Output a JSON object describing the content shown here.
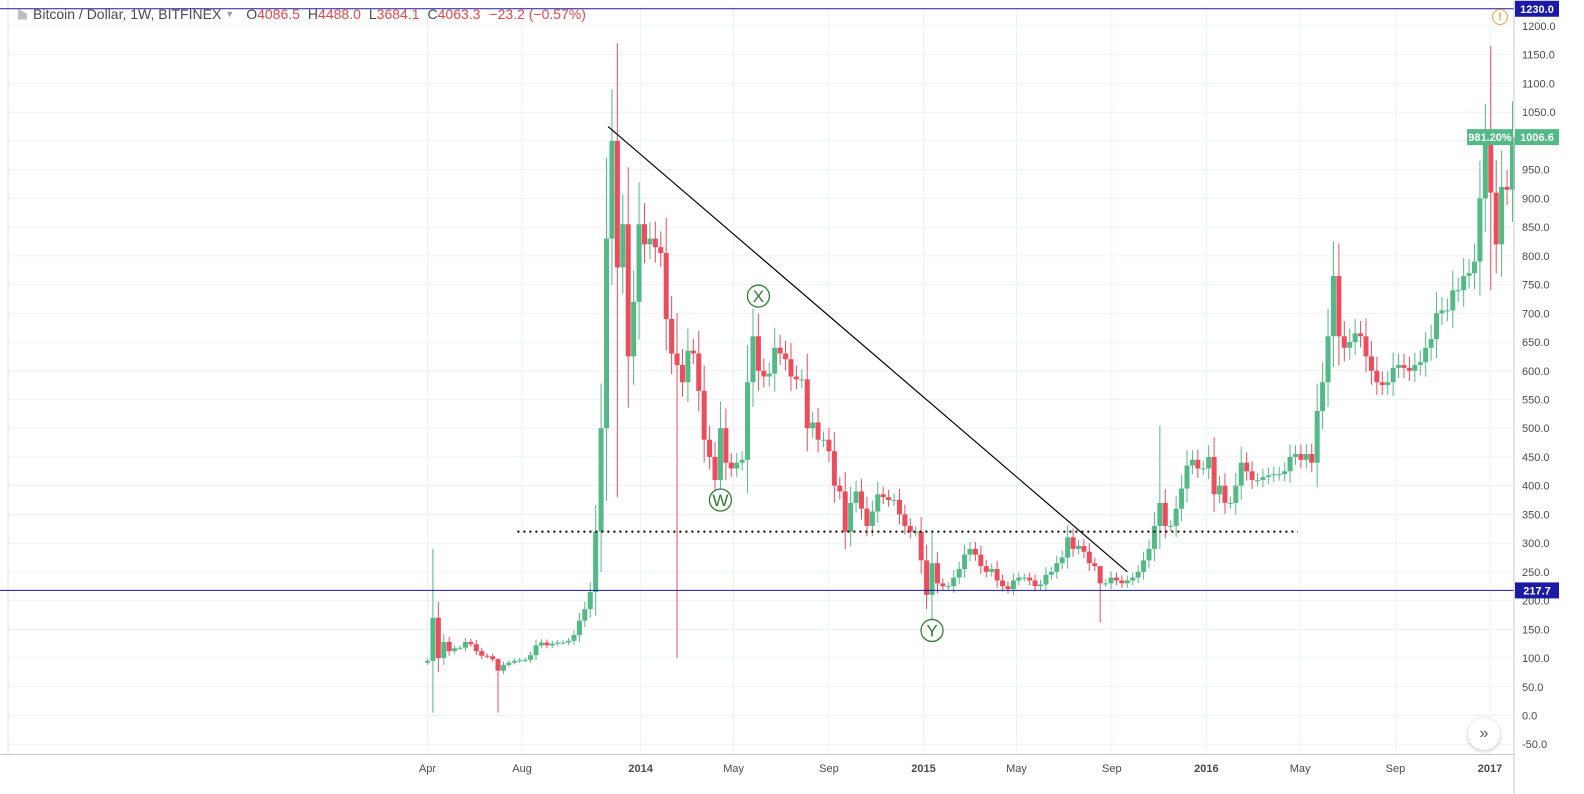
{
  "header": {
    "symbol": "Bitcoin / Dollar, 1W, BITFINEX",
    "o_label": "O",
    "o_value": "4086.5",
    "h_label": "H",
    "h_value": "4488.0",
    "l_label": "L",
    "l_value": "3684.1",
    "c_label": "C",
    "c_value": "4063.3",
    "change": "−23.2 (−0.57%)"
  },
  "colors": {
    "up": "#53b987",
    "down": "#eb4d5c",
    "hline": "#1a1aa6",
    "trendline": "#000000",
    "wave_label": "#2f7d2f",
    "price_tag": "#53b987"
  },
  "icons": {
    "alert": "alert-circle-icon",
    "scroll": "double-chevron-right-icon"
  },
  "price_tags": {
    "top_line": "1230.0",
    "support_line": "217.7",
    "percent": "981.20%",
    "last": "1006.6"
  },
  "wave_labels": [
    "W",
    "X",
    "Y"
  ],
  "chart_data": {
    "type": "candlestick",
    "title": "Bitcoin / Dollar, 1W, BITFINEX",
    "ylim": [
      -70,
      1230
    ],
    "y_ticks": [
      -50,
      0,
      50,
      100,
      150,
      200,
      250,
      300,
      350,
      400,
      450,
      500,
      550,
      600,
      650,
      700,
      750,
      800,
      850,
      900,
      950,
      1000,
      1050,
      1100,
      1150,
      1200
    ],
    "x_ticks": [
      "Apr",
      "Aug",
      "2014",
      "May",
      "Sep",
      "2015",
      "May",
      "Sep",
      "2016",
      "May",
      "Sep",
      "2017"
    ],
    "grid": true,
    "horizontal_lines": [
      1230.0,
      217.7
    ],
    "dotted_level": 320,
    "trendline": [
      {
        "x": "2013-11-25",
        "y": 1025
      },
      {
        "x": "2015-09-21",
        "y": 250
      }
    ],
    "wave_annotations": [
      {
        "label": "W",
        "x": "2014-04-14",
        "y": 375
      },
      {
        "label": "X",
        "x": "2014-06-02",
        "y": 730
      },
      {
        "label": "Y",
        "x": "2015-01-12",
        "y": 148
      }
    ],
    "weekly_close": [
      {
        "date": "2013-04-01",
        "close": 95
      },
      {
        "date": "2013-04-08",
        "close": 170
      },
      {
        "date": "2013-04-15",
        "close": 100
      },
      {
        "date": "2013-04-22",
        "close": 128
      },
      {
        "date": "2013-04-29",
        "close": 112
      },
      {
        "date": "2013-05-06",
        "close": 117
      },
      {
        "date": "2013-05-13",
        "close": 118
      },
      {
        "date": "2013-05-20",
        "close": 128
      },
      {
        "date": "2013-05-27",
        "close": 124
      },
      {
        "date": "2013-06-03",
        "close": 112
      },
      {
        "date": "2013-06-10",
        "close": 104
      },
      {
        "date": "2013-06-17",
        "close": 103
      },
      {
        "date": "2013-06-24",
        "close": 98
      },
      {
        "date": "2013-07-01",
        "close": 78
      },
      {
        "date": "2013-07-08",
        "close": 88
      },
      {
        "date": "2013-07-15",
        "close": 92
      },
      {
        "date": "2013-07-22",
        "close": 95
      },
      {
        "date": "2013-07-29",
        "close": 96
      },
      {
        "date": "2013-08-05",
        "close": 97
      },
      {
        "date": "2013-08-12",
        "close": 105
      },
      {
        "date": "2013-08-19",
        "close": 122
      },
      {
        "date": "2013-08-26",
        "close": 127
      },
      {
        "date": "2013-09-02",
        "close": 122
      },
      {
        "date": "2013-09-09",
        "close": 125
      },
      {
        "date": "2013-09-16",
        "close": 127
      },
      {
        "date": "2013-09-23",
        "close": 127
      },
      {
        "date": "2013-09-30",
        "close": 130
      },
      {
        "date": "2013-10-07",
        "close": 140
      },
      {
        "date": "2013-10-14",
        "close": 165
      },
      {
        "date": "2013-10-21",
        "close": 185
      },
      {
        "date": "2013-10-28",
        "close": 215
      },
      {
        "date": "2013-11-04",
        "close": 320
      },
      {
        "date": "2013-11-11",
        "close": 500
      },
      {
        "date": "2013-11-18",
        "close": 830
      },
      {
        "date": "2013-11-25",
        "close": 1000
      },
      {
        "date": "2013-12-02",
        "close": 780
      },
      {
        "date": "2013-12-09",
        "close": 855
      },
      {
        "date": "2013-12-16",
        "close": 625
      },
      {
        "date": "2013-12-23",
        "close": 720
      },
      {
        "date": "2013-12-30",
        "close": 855
      },
      {
        "date": "2014-01-06",
        "close": 820
      },
      {
        "date": "2014-01-13",
        "close": 830
      },
      {
        "date": "2014-01-20",
        "close": 815
      },
      {
        "date": "2014-01-27",
        "close": 805
      },
      {
        "date": "2014-02-03",
        "close": 690
      },
      {
        "date": "2014-02-10",
        "close": 630
      },
      {
        "date": "2014-02-17",
        "close": 610
      },
      {
        "date": "2014-02-24",
        "close": 580
      },
      {
        "date": "2014-03-03",
        "close": 635
      },
      {
        "date": "2014-03-10",
        "close": 630
      },
      {
        "date": "2014-03-17",
        "close": 565
      },
      {
        "date": "2014-03-24",
        "close": 480
      },
      {
        "date": "2014-03-31",
        "close": 450
      },
      {
        "date": "2014-04-07",
        "close": 410
      },
      {
        "date": "2014-04-14",
        "close": 500
      },
      {
        "date": "2014-04-21",
        "close": 440
      },
      {
        "date": "2014-04-28",
        "close": 430
      },
      {
        "date": "2014-05-05",
        "close": 440
      },
      {
        "date": "2014-05-12",
        "close": 445
      },
      {
        "date": "2014-05-19",
        "close": 580
      },
      {
        "date": "2014-05-26",
        "close": 660
      },
      {
        "date": "2014-06-02",
        "close": 600
      },
      {
        "date": "2014-06-09",
        "close": 590
      },
      {
        "date": "2014-06-16",
        "close": 595
      },
      {
        "date": "2014-06-23",
        "close": 640
      },
      {
        "date": "2014-06-30",
        "close": 630
      },
      {
        "date": "2014-07-07",
        "close": 620
      },
      {
        "date": "2014-07-14",
        "close": 590
      },
      {
        "date": "2014-07-21",
        "close": 585
      },
      {
        "date": "2014-07-28",
        "close": 585
      },
      {
        "date": "2014-08-04",
        "close": 500
      },
      {
        "date": "2014-08-11",
        "close": 510
      },
      {
        "date": "2014-08-18",
        "close": 480
      },
      {
        "date": "2014-08-25",
        "close": 480
      },
      {
        "date": "2014-09-01",
        "close": 460
      },
      {
        "date": "2014-09-08",
        "close": 400
      },
      {
        "date": "2014-09-15",
        "close": 390
      },
      {
        "date": "2014-09-22",
        "close": 320
      },
      {
        "date": "2014-09-29",
        "close": 370
      },
      {
        "date": "2014-10-06",
        "close": 390
      },
      {
        "date": "2014-10-13",
        "close": 360
      },
      {
        "date": "2014-10-20",
        "close": 330
      },
      {
        "date": "2014-10-27",
        "close": 355
      },
      {
        "date": "2014-11-03",
        "close": 385
      },
      {
        "date": "2014-11-10",
        "close": 380
      },
      {
        "date": "2014-11-17",
        "close": 375
      },
      {
        "date": "2014-11-24",
        "close": 375
      },
      {
        "date": "2014-12-01",
        "close": 350
      },
      {
        "date": "2014-12-08",
        "close": 330
      },
      {
        "date": "2014-12-15",
        "close": 320
      },
      {
        "date": "2014-12-22",
        "close": 320
      },
      {
        "date": "2014-12-29",
        "close": 270
      },
      {
        "date": "2015-01-05",
        "close": 210
      },
      {
        "date": "2015-01-12",
        "close": 265
      },
      {
        "date": "2015-01-19",
        "close": 230
      },
      {
        "date": "2015-01-26",
        "close": 225
      },
      {
        "date": "2015-02-02",
        "close": 225
      },
      {
        "date": "2015-02-09",
        "close": 240
      },
      {
        "date": "2015-02-16",
        "close": 255
      },
      {
        "date": "2015-02-23",
        "close": 280
      },
      {
        "date": "2015-03-02",
        "close": 290
      },
      {
        "date": "2015-03-09",
        "close": 280
      },
      {
        "date": "2015-03-16",
        "close": 260
      },
      {
        "date": "2015-03-23",
        "close": 250
      },
      {
        "date": "2015-03-30",
        "close": 255
      },
      {
        "date": "2015-04-06",
        "close": 235
      },
      {
        "date": "2015-04-13",
        "close": 225
      },
      {
        "date": "2015-04-20",
        "close": 220
      },
      {
        "date": "2015-04-27",
        "close": 235
      },
      {
        "date": "2015-05-04",
        "close": 240
      },
      {
        "date": "2015-05-11",
        "close": 240
      },
      {
        "date": "2015-05-18",
        "close": 235
      },
      {
        "date": "2015-05-25",
        "close": 225
      },
      {
        "date": "2015-06-01",
        "close": 228
      },
      {
        "date": "2015-06-08",
        "close": 245
      },
      {
        "date": "2015-06-15",
        "close": 250
      },
      {
        "date": "2015-06-22",
        "close": 265
      },
      {
        "date": "2015-06-29",
        "close": 275
      },
      {
        "date": "2015-07-06",
        "close": 310
      },
      {
        "date": "2015-07-13",
        "close": 290
      },
      {
        "date": "2015-07-20",
        "close": 295
      },
      {
        "date": "2015-07-27",
        "close": 285
      },
      {
        "date": "2015-08-03",
        "close": 265
      },
      {
        "date": "2015-08-10",
        "close": 260
      },
      {
        "date": "2015-08-17",
        "close": 230
      },
      {
        "date": "2015-08-24",
        "close": 230
      },
      {
        "date": "2015-08-31",
        "close": 240
      },
      {
        "date": "2015-09-07",
        "close": 235
      },
      {
        "date": "2015-09-14",
        "close": 230
      },
      {
        "date": "2015-09-21",
        "close": 235
      },
      {
        "date": "2015-09-28",
        "close": 240
      },
      {
        "date": "2015-10-05",
        "close": 250
      },
      {
        "date": "2015-10-12",
        "close": 270
      },
      {
        "date": "2015-10-19",
        "close": 290
      },
      {
        "date": "2015-10-26",
        "close": 330
      },
      {
        "date": "2015-11-02",
        "close": 370
      },
      {
        "date": "2015-11-09",
        "close": 330
      },
      {
        "date": "2015-11-16",
        "close": 330
      },
      {
        "date": "2015-11-23",
        "close": 360
      },
      {
        "date": "2015-11-30",
        "close": 395
      },
      {
        "date": "2015-12-07",
        "close": 435
      },
      {
        "date": "2015-12-14",
        "close": 445
      },
      {
        "date": "2015-12-21",
        "close": 430
      },
      {
        "date": "2015-12-28",
        "close": 430
      },
      {
        "date": "2016-01-04",
        "close": 450
      },
      {
        "date": "2016-01-11",
        "close": 385
      },
      {
        "date": "2016-01-18",
        "close": 400
      },
      {
        "date": "2016-01-25",
        "close": 370
      },
      {
        "date": "2016-02-01",
        "close": 370
      },
      {
        "date": "2016-02-08",
        "close": 400
      },
      {
        "date": "2016-02-15",
        "close": 440
      },
      {
        "date": "2016-02-22",
        "close": 425
      },
      {
        "date": "2016-02-29",
        "close": 410
      },
      {
        "date": "2016-03-07",
        "close": 410
      },
      {
        "date": "2016-03-14",
        "close": 415
      },
      {
        "date": "2016-03-21",
        "close": 418
      },
      {
        "date": "2016-03-28",
        "close": 420
      },
      {
        "date": "2016-04-04",
        "close": 420
      },
      {
        "date": "2016-04-11",
        "close": 425
      },
      {
        "date": "2016-04-18",
        "close": 450
      },
      {
        "date": "2016-04-25",
        "close": 455
      },
      {
        "date": "2016-05-02",
        "close": 445
      },
      {
        "date": "2016-05-09",
        "close": 455
      },
      {
        "date": "2016-05-16",
        "close": 440
      },
      {
        "date": "2016-05-23",
        "close": 530
      },
      {
        "date": "2016-05-30",
        "close": 580
      },
      {
        "date": "2016-06-06",
        "close": 660
      },
      {
        "date": "2016-06-13",
        "close": 765
      },
      {
        "date": "2016-06-20",
        "close": 660
      },
      {
        "date": "2016-06-27",
        "close": 640
      },
      {
        "date": "2016-07-04",
        "close": 650
      },
      {
        "date": "2016-07-11",
        "close": 665
      },
      {
        "date": "2016-07-18",
        "close": 660
      },
      {
        "date": "2016-07-25",
        "close": 625
      },
      {
        "date": "2016-08-01",
        "close": 600
      },
      {
        "date": "2016-08-08",
        "close": 580
      },
      {
        "date": "2016-08-15",
        "close": 575
      },
      {
        "date": "2016-08-22",
        "close": 580
      },
      {
        "date": "2016-08-29",
        "close": 605
      },
      {
        "date": "2016-09-05",
        "close": 610
      },
      {
        "date": "2016-09-12",
        "close": 605
      },
      {
        "date": "2016-09-19",
        "close": 600
      },
      {
        "date": "2016-09-26",
        "close": 610
      },
      {
        "date": "2016-10-03",
        "close": 615
      },
      {
        "date": "2016-10-10",
        "close": 640
      },
      {
        "date": "2016-10-17",
        "close": 655
      },
      {
        "date": "2016-10-24",
        "close": 700
      },
      {
        "date": "2016-10-31",
        "close": 705
      },
      {
        "date": "2016-11-07",
        "close": 705
      },
      {
        "date": "2016-11-14",
        "close": 740
      },
      {
        "date": "2016-11-21",
        "close": 740
      },
      {
        "date": "2016-11-28",
        "close": 765
      },
      {
        "date": "2016-12-05",
        "close": 770
      },
      {
        "date": "2016-12-12",
        "close": 790
      },
      {
        "date": "2016-12-19",
        "close": 900
      },
      {
        "date": "2016-12-26",
        "close": 1000
      },
      {
        "date": "2017-01-02",
        "close": 910
      },
      {
        "date": "2017-01-09",
        "close": 820
      },
      {
        "date": "2017-01-16",
        "close": 920
      },
      {
        "date": "2017-01-23",
        "close": 915
      },
      {
        "date": "2017-01-30",
        "close": 1006.6
      }
    ],
    "notable_wicks": [
      {
        "date": "2013-04-08",
        "high": 290,
        "low": 5
      },
      {
        "date": "2013-07-01",
        "high": 100,
        "low": 5
      },
      {
        "date": "2013-12-02",
        "high": 1170,
        "low": 380
      },
      {
        "date": "2014-02-17",
        "high": 700,
        "low": 100
      },
      {
        "date": "2015-01-12",
        "high": 320,
        "low": 165
      },
      {
        "date": "2015-08-17",
        "high": 260,
        "low": 162
      },
      {
        "date": "2015-11-02",
        "high": 505,
        "low": 290
      },
      {
        "date": "2017-01-02",
        "high": 1165,
        "low": 740
      }
    ]
  }
}
